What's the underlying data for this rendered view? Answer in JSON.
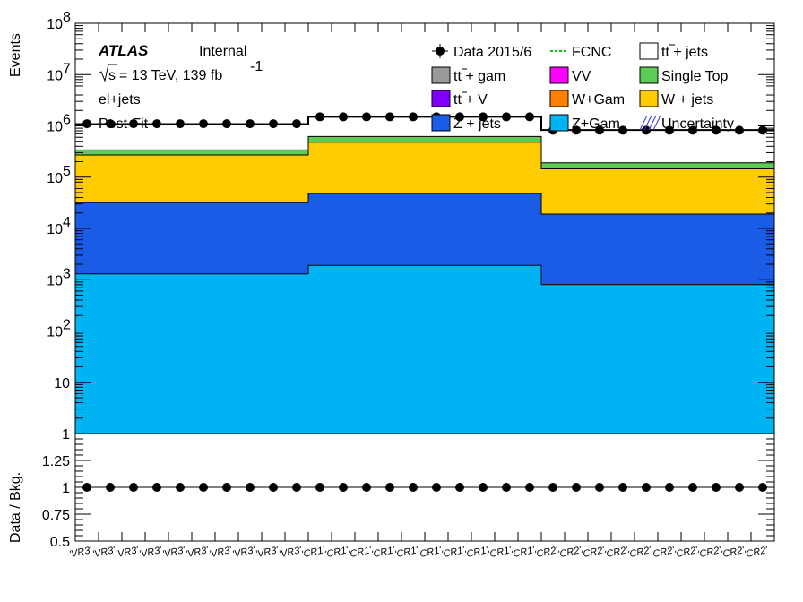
{
  "chart_data": [
    {
      "type": "bar",
      "stacked": true,
      "scale": "log",
      "ylabel": "Events",
      "ylim": [
        1,
        100000000
      ],
      "y_tick_labels": [
        "1",
        "10",
        "10^2",
        "10^3",
        "10^4",
        "10^5",
        "10^6",
        "10^7",
        "10^8"
      ],
      "annotations": {
        "atlas": "ATLAS",
        "internal": "Internal",
        "sqrt_s": "s",
        "energy_lumi": "= 13 TeV, 139 fb",
        "lumi_exp": "-1",
        "channel": "el+jets",
        "fit": "Post-Fit"
      },
      "regions": [
        "VR3",
        "CR1",
        "CR2"
      ],
      "categories": [
        "'VR3'",
        "'VR3'",
        "'VR3'",
        "'VR3'",
        "'VR3'",
        "'VR3'",
        "'VR3'",
        "'VR3'",
        "'VR3'",
        "'VR3'",
        "'CR1'",
        "'CR1'",
        "'CR1'",
        "'CR1'",
        "'CR1'",
        "'CR1'",
        "'CR1'",
        "'CR1'",
        "'CR1'",
        "'CR1'",
        "'CR2'",
        "'CR2'",
        "'CR2'",
        "'CR2'",
        "'CR2'",
        "'CR2'",
        "'CR2'",
        "'CR2'",
        "'CR2'",
        "'CR2'"
      ],
      "stack_boundaries_cumulative": {
        "Z+Gam": [
          1300,
          1900,
          800
        ],
        "Z + jets": [
          32000,
          48000,
          19000
        ],
        "W + jets": [
          270000,
          480000,
          145000
        ],
        "Single Top": [
          340000,
          620000,
          190000
        ],
        "tt + jets": [
          1080000,
          1500000,
          830000
        ]
      },
      "series": [
        {
          "name": "Data 2015/6",
          "region_values": [
            1100000,
            1500000,
            820000
          ]
        },
        {
          "name": "tt + jets",
          "color": "#ffffff"
        },
        {
          "name": "tt +  gam",
          "color": "#999999"
        },
        {
          "name": "VV",
          "color": "#ff00ff"
        },
        {
          "name": "Single Top",
          "color": "#5ccc57"
        },
        {
          "name": "tt + V",
          "color": "#8000ff"
        },
        {
          "name": "W+Gam",
          "color": "#ff7f00"
        },
        {
          "name": "W + jets",
          "color": "#ffcc00"
        },
        {
          "name": "Z + jets",
          "color": "#1a5ce6"
        },
        {
          "name": "Z+Gam",
          "color": "#00b3f2"
        },
        {
          "name": "FCNC",
          "color": "#00cc00"
        },
        {
          "name": "Uncertainty",
          "color": "#3333cc"
        }
      ],
      "legend_placement": "top-right"
    },
    {
      "type": "scatter",
      "ylabel": "Data / Bkg.",
      "ylim": [
        0.5,
        1.5
      ],
      "y_tick_labels": [
        "0.5",
        "0.75",
        "1",
        "1.25"
      ],
      "values": [
        1,
        1,
        1,
        1,
        1,
        1,
        1,
        1,
        1,
        1,
        1,
        1,
        1,
        1,
        1,
        1,
        1,
        1,
        1,
        1,
        1,
        1,
        1,
        1,
        1,
        1,
        1,
        1,
        1,
        1
      ]
    }
  ]
}
